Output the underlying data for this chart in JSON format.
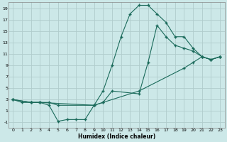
{
  "xlabel": "Humidex (Indice chaleur)",
  "bg_color": "#cce8e8",
  "grid_color": "#b0cccc",
  "line_color": "#1a6a5a",
  "xlim": [
    -0.5,
    23.5
  ],
  "ylim": [
    -2,
    20
  ],
  "xticks": [
    0,
    1,
    2,
    3,
    4,
    5,
    6,
    7,
    8,
    9,
    10,
    11,
    12,
    13,
    14,
    15,
    16,
    17,
    18,
    19,
    20,
    21,
    22,
    23
  ],
  "yticks": [
    -1,
    1,
    3,
    5,
    7,
    9,
    11,
    13,
    15,
    17,
    19
  ],
  "line1_x": [
    0,
    1,
    2,
    3,
    4,
    5,
    6,
    7,
    8,
    9,
    10,
    11,
    12,
    13,
    14,
    15,
    16,
    17,
    18,
    19,
    20,
    21,
    22,
    23
  ],
  "line1_y": [
    3,
    2.5,
    2.5,
    2.5,
    2,
    -0.8,
    -0.5,
    -0.5,
    -0.5,
    2,
    4.5,
    9,
    14,
    18,
    19.5,
    19.5,
    18,
    16.5,
    14,
    14,
    12,
    10.5,
    10,
    10.5
  ],
  "line2_x": [
    0,
    2,
    3,
    4,
    5,
    9,
    10,
    11,
    14,
    15,
    16,
    17,
    18,
    19,
    20,
    21,
    22,
    23
  ],
  "line2_y": [
    3,
    2.5,
    2.5,
    2.5,
    2,
    2,
    2.5,
    4.5,
    4,
    9.5,
    16,
    14,
    12.5,
    12,
    11.5,
    10.5,
    10,
    10.5
  ],
  "line3_x": [
    0,
    2,
    3,
    9,
    10,
    14,
    19,
    20,
    21,
    22,
    23
  ],
  "line3_y": [
    3,
    2.5,
    2.5,
    2,
    2.5,
    4.5,
    8.5,
    9.5,
    10.5,
    10,
    10.5
  ]
}
